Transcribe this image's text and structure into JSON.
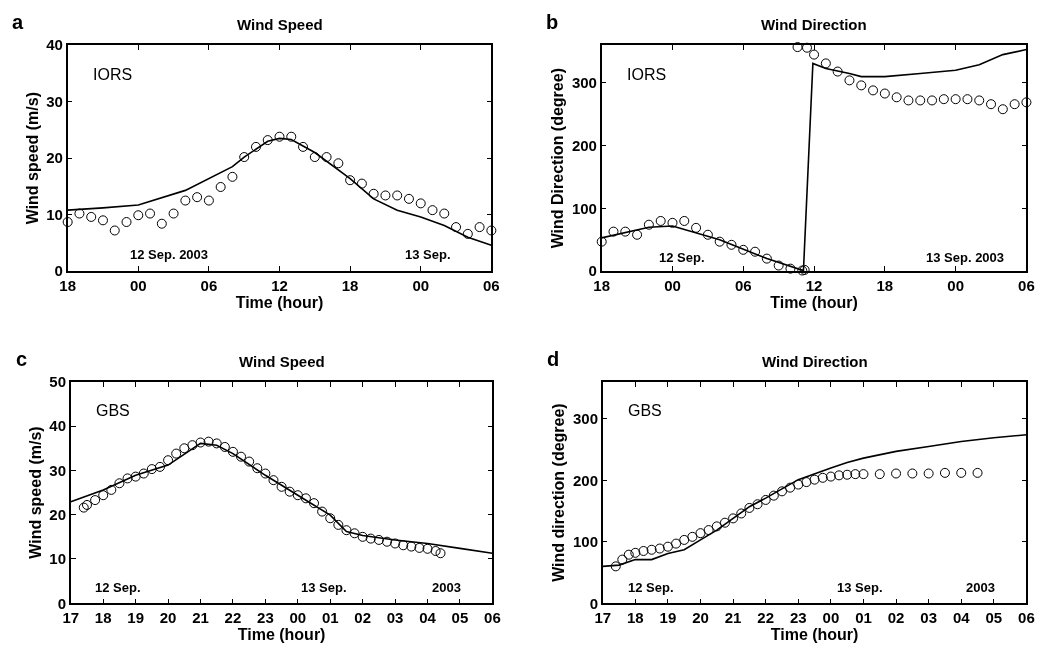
{
  "chart_data": [
    {
      "type": "line",
      "title": "Wind Speed",
      "xlabel": "Time (hour)",
      "ylabel": "Wind speed (m/s)",
      "xlim": [
        "--09-11T18:00",
        "--09-13T06:00"
      ],
      "xticks": [
        {
          "value": "--09-11T18:00",
          "label": "18"
        },
        {
          "value": "--09-12T00:00",
          "label": "00"
        },
        {
          "value": "--09-12T06:00",
          "label": "06"
        },
        {
          "value": "--09-12T12:00",
          "label": "12"
        },
        {
          "value": "--09-12T18:00",
          "label": "18"
        },
        {
          "value": "--09-13T00:00",
          "label": "00"
        },
        {
          "value": "--09-13T06:00",
          "label": "06"
        }
      ],
      "ylim": [
        0,
        40
      ],
      "yticks": [
        0,
        10,
        20,
        30,
        40
      ],
      "annotations": [
        "a",
        "IORS",
        "12 Sep. 2003",
        "13 Sep."
      ],
      "series": [
        {
          "type": "scatter",
          "marker": "circle",
          "color": "#000000",
          "x": [
            "--09-11T18:00",
            "--09-11T19:00",
            "--09-11T20:00",
            "--09-11T21:00",
            "--09-11T22:00",
            "--09-11T23:00",
            "--09-12T00:00",
            "--09-12T01:00",
            "--09-12T02:00",
            "--09-12T03:00",
            "--09-12T04:00",
            "--09-12T05:00",
            "--09-12T06:00",
            "--09-12T07:00",
            "--09-12T08:00",
            "--09-12T09:00",
            "--09-12T10:00",
            "--09-12T11:00",
            "--09-12T12:00",
            "--09-12T13:00",
            "--09-12T14:00",
            "--09-12T15:00",
            "--09-12T16:00",
            "--09-12T17:00",
            "--09-12T18:00",
            "--09-12T19:00",
            "--09-12T20:00",
            "--09-12T21:00",
            "--09-12T22:00",
            "--09-12T23:00",
            "--09-13T00:00",
            "--09-13T01:00",
            "--09-13T02:00",
            "--09-13T03:00",
            "--09-13T04:00",
            "--09-13T05:00",
            "--09-13T06:00"
          ],
          "values": [
            8.7,
            10.2,
            9.6,
            9.0,
            7.2,
            8.7,
            9.9,
            10.2,
            8.4,
            10.2,
            12.5,
            13.1,
            12.5,
            14.9,
            16.7,
            20.2,
            22.0,
            23.2,
            23.8,
            23.8,
            22.0,
            20.2,
            20.2,
            19.1,
            16.1,
            15.5,
            13.7,
            13.4,
            13.4,
            12.8,
            12.0,
            10.8,
            10.2,
            7.8,
            6.6,
            7.8,
            7.2
          ]
        },
        {
          "marker": "none",
          "color": "#000000",
          "x": [
            "--09-11T18:00",
            "--09-11T21:00",
            "--09-12T00:00",
            "--09-12T04:00",
            "--09-12T08:00",
            "--09-12T09:00",
            "--09-12T11:00",
            "--09-12T12:00",
            "--09-12T13:00",
            "--09-12T15:00",
            "--09-12T18:00",
            "--09-12T20:00",
            "--09-12T22:00",
            "--09-13T00:00",
            "--09-13T02:00",
            "--09-13T04:00",
            "--09-13T06:00"
          ],
          "values": [
            10.8,
            11.2,
            11.7,
            14.3,
            18.5,
            20.2,
            23.0,
            23.5,
            23.3,
            21.0,
            16.4,
            12.8,
            10.8,
            9.6,
            8.1,
            6.0,
            4.6
          ]
        }
      ]
    },
    {
      "type": "line",
      "title": "Wind Direction",
      "xlabel": "Time (hour)",
      "ylabel": "Wind Direction (degree)",
      "xlim": [
        "--09-11T18:00",
        "--09-13T06:00"
      ],
      "xticks": [
        {
          "value": "--09-11T18:00",
          "label": "18"
        },
        {
          "value": "--09-12T00:00",
          "label": "00"
        },
        {
          "value": "--09-12T06:00",
          "label": "06"
        },
        {
          "value": "--09-12T12:00",
          "label": "12"
        },
        {
          "value": "--09-12T18:00",
          "label": "18"
        },
        {
          "value": "--09-13T00:00",
          "label": "00"
        },
        {
          "value": "--09-13T06:00",
          "label": "06"
        }
      ],
      "ylim": [
        0,
        360
      ],
      "yticks": [
        0,
        100,
        200,
        300
      ],
      "annotations": [
        "b",
        "IORS",
        "12 Sep.",
        "13 Sep. 2003"
      ],
      "series": [
        {
          "type": "scatter",
          "marker": "circle",
          "color": "#000000",
          "x": [
            "--09-11T18:00",
            "--09-11T19:00",
            "--09-11T20:00",
            "--09-11T21:00",
            "--09-11T22:00",
            "--09-11T23:00",
            "--09-12T00:00",
            "--09-12T01:00",
            "--09-12T02:00",
            "--09-12T03:00",
            "--09-12T04:00",
            "--09-12T05:00",
            "--09-12T06:00",
            "--09-12T07:00",
            "--09-12T08:00",
            "--09-12T09:00",
            "--09-12T10:00",
            "--09-12T11:00",
            "--09-12T11:12",
            "--09-12T10:36",
            "--09-12T11:24",
            "--09-12T12:00",
            "--09-12T13:00",
            "--09-12T14:00",
            "--09-12T15:00",
            "--09-12T16:00",
            "--09-12T17:00",
            "--09-12T18:00",
            "--09-12T19:00",
            "--09-12T20:00",
            "--09-12T21:00",
            "--09-12T22:00",
            "--09-12T23:00",
            "--09-13T00:00",
            "--09-13T01:00",
            "--09-13T02:00",
            "--09-13T03:00",
            "--09-13T04:00",
            "--09-13T05:00",
            "--09-13T06:00"
          ],
          "values": [
            47,
            63,
            63,
            58,
            74,
            80,
            77,
            80,
            69,
            58,
            47,
            42,
            34,
            31,
            20,
            9,
            4,
            1,
            2,
            357,
            356,
            345,
            331,
            318,
            304,
            296,
            288,
            283,
            277,
            272,
            272,
            272,
            274,
            274,
            274,
            272,
            266,
            258,
            266,
            269
          ]
        },
        {
          "marker": "none",
          "color": "#000000",
          "x": [
            "--09-11T18:00",
            "--09-11T22:00",
            "--09-12T00:00",
            "--09-12T04:00",
            "--09-12T08:00",
            "--09-12T11:06",
            "--09-12T11:54",
            "--09-12T13:00",
            "--09-12T15:00",
            "--09-12T16:00",
            "--09-12T18:00",
            "--09-12T21:00",
            "--09-13T00:00",
            "--09-13T02:00",
            "--09-13T04:00",
            "--09-13T06:00"
          ],
          "values": [
            53,
            70,
            72,
            50,
            20,
            1,
            331,
            323,
            315,
            310,
            310,
            315,
            320,
            329,
            345,
            353
          ]
        }
      ]
    },
    {
      "type": "line",
      "title": "Wind Speed",
      "xlabel": "Time (hour)",
      "ylabel": "Wind speed (m/s)",
      "xlim": [
        "--09-12T17:00",
        "--09-13T06:00"
      ],
      "xticks": [
        {
          "value": "--09-12T17:00",
          "label": "17"
        },
        {
          "value": "--09-12T18:00",
          "label": "18"
        },
        {
          "value": "--09-12T19:00",
          "label": "19"
        },
        {
          "value": "--09-12T20:00",
          "label": "20"
        },
        {
          "value": "--09-12T21:00",
          "label": "21"
        },
        {
          "value": "--09-12T22:00",
          "label": "22"
        },
        {
          "value": "--09-12T23:00",
          "label": "23"
        },
        {
          "value": "--09-13T00:00",
          "label": "00"
        },
        {
          "value": "--09-13T01:00",
          "label": "01"
        },
        {
          "value": "--09-13T02:00",
          "label": "02"
        },
        {
          "value": "--09-13T03:00",
          "label": "03"
        },
        {
          "value": "--09-13T04:00",
          "label": "04"
        },
        {
          "value": "--09-13T05:00",
          "label": "05"
        },
        {
          "value": "--09-13T06:00",
          "label": "06"
        }
      ],
      "ylim": [
        0,
        50
      ],
      "yticks": [
        0,
        10,
        20,
        30,
        40,
        50
      ],
      "annotations": [
        "c",
        "GBS",
        "12 Sep.",
        "13 Sep.",
        "2003"
      ],
      "series": [
        {
          "type": "scatter",
          "marker": "circle",
          "color": "#000000",
          "x": [
            "--09-12T17:24",
            "--09-12T17:30",
            "--09-12T17:45",
            "--09-12T18:00",
            "--09-12T18:15",
            "--09-12T18:30",
            "--09-12T18:45",
            "--09-12T19:00",
            "--09-12T19:15",
            "--09-12T19:30",
            "--09-12T19:45",
            "--09-12T20:00",
            "--09-12T20:15",
            "--09-12T20:30",
            "--09-12T20:45",
            "--09-12T21:00",
            "--09-12T21:15",
            "--09-12T21:30",
            "--09-12T21:45",
            "--09-12T22:00",
            "--09-12T22:15",
            "--09-12T22:30",
            "--09-12T22:45",
            "--09-12T23:00",
            "--09-12T23:15",
            "--09-12T23:30",
            "--09-12T23:45",
            "--09-13T00:00",
            "--09-13T00:15",
            "--09-13T00:30",
            "--09-13T00:45",
            "--09-13T01:00",
            "--09-13T01:15",
            "--09-13T01:30",
            "--09-13T01:45",
            "--09-13T02:00",
            "--09-13T02:15",
            "--09-13T02:30",
            "--09-13T02:45",
            "--09-13T03:00",
            "--09-13T03:15",
            "--09-13T03:30",
            "--09-13T03:45",
            "--09-13T04:00",
            "--09-13T04:15",
            "--09-13T04:24"
          ],
          "values": [
            21.6,
            22.2,
            23.3,
            24.4,
            25.6,
            27.1,
            28.2,
            28.6,
            29.3,
            30.3,
            30.8,
            32.3,
            33.8,
            35.0,
            35.7,
            36.3,
            36.5,
            36.1,
            35.3,
            34.2,
            33.1,
            32.0,
            30.5,
            29.3,
            27.8,
            26.3,
            25.2,
            24.4,
            23.7,
            22.6,
            20.7,
            19.2,
            17.7,
            16.5,
            15.8,
            15.0,
            14.6,
            14.3,
            13.9,
            13.5,
            13.1,
            12.8,
            12.5,
            12.3,
            11.8,
            11.3
          ]
        },
        {
          "marker": "none",
          "color": "#000000",
          "x": [
            "--09-12T17:00",
            "--09-12T18:00",
            "--09-12T19:00",
            "--09-12T20:00",
            "--09-12T21:00",
            "--09-12T21:30",
            "--09-12T22:00",
            "--09-12T23:00",
            "--09-13T00:00",
            "--09-13T01:00",
            "--09-13T01:30",
            "--09-13T02:00",
            "--09-13T03:00",
            "--09-13T04:00",
            "--09-13T05:00",
            "--09-13T06:00"
          ],
          "values": [
            22.9,
            25.6,
            28.9,
            31.2,
            36.1,
            35.7,
            33.8,
            28.9,
            24.4,
            19.9,
            16.2,
            15.3,
            14.3,
            13.5,
            12.4,
            11.3
          ]
        }
      ]
    },
    {
      "type": "line",
      "title": "Wind Direction",
      "xlabel": "Time (hour)",
      "ylabel": "Wind direction (degree)",
      "xlim": [
        "--09-12T17:00",
        "--09-13T06:00"
      ],
      "xticks": [
        {
          "value": "--09-12T17:00",
          "label": "17"
        },
        {
          "value": "--09-12T18:00",
          "label": "18"
        },
        {
          "value": "--09-12T19:00",
          "label": "19"
        },
        {
          "value": "--09-12T20:00",
          "label": "20"
        },
        {
          "value": "--09-12T21:00",
          "label": "21"
        },
        {
          "value": "--09-12T22:00",
          "label": "22"
        },
        {
          "value": "--09-12T23:00",
          "label": "23"
        },
        {
          "value": "--09-13T00:00",
          "label": "00"
        },
        {
          "value": "--09-13T01:00",
          "label": "01"
        },
        {
          "value": "--09-13T02:00",
          "label": "02"
        },
        {
          "value": "--09-13T03:00",
          "label": "03"
        },
        {
          "value": "--09-13T04:00",
          "label": "04"
        },
        {
          "value": "--09-13T05:00",
          "label": "05"
        },
        {
          "value": "--09-13T06:00",
          "label": "06"
        }
      ],
      "ylim": [
        0,
        360
      ],
      "yticks": [
        0,
        100,
        200,
        300
      ],
      "annotations": [
        "d",
        "GBS",
        "12 Sep.",
        "13 Sep.",
        "2003"
      ],
      "series": [
        {
          "type": "scatter",
          "marker": "circle",
          "color": "#000000",
          "x": [
            "--09-12T17:24",
            "--09-12T17:36",
            "--09-12T17:48",
            "--09-12T18:00",
            "--09-12T18:15",
            "--09-12T18:30",
            "--09-12T18:45",
            "--09-12T19:00",
            "--09-12T19:15",
            "--09-12T19:30",
            "--09-12T19:45",
            "--09-12T20:00",
            "--09-12T20:15",
            "--09-12T20:30",
            "--09-12T20:45",
            "--09-12T21:00",
            "--09-12T21:15",
            "--09-12T21:30",
            "--09-12T21:45",
            "--09-12T22:00",
            "--09-12T22:15",
            "--09-12T22:30",
            "--09-12T22:45",
            "--09-12T23:00",
            "--09-12T23:15",
            "--09-12T23:30",
            "--09-12T23:45",
            "--09-13T00:00",
            "--09-13T00:15",
            "--09-13T00:30",
            "--09-13T00:45",
            "--09-13T01:00",
            "--09-13T01:30",
            "--09-13T02:00",
            "--09-13T02:30",
            "--09-13T03:00",
            "--09-13T03:30",
            "--09-13T04:00",
            "--09-13T04:30"
          ],
          "values": [
            60,
            71,
            79,
            82,
            85,
            87,
            89,
            92,
            97,
            103,
            108,
            114,
            119,
            125,
            131,
            138,
            146,
            155,
            161,
            168,
            175,
            182,
            188,
            193,
            197,
            201,
            204,
            206,
            208,
            209,
            210,
            210,
            210,
            211,
            211,
            211,
            212,
            212,
            212
          ]
        },
        {
          "marker": "none",
          "color": "#000000",
          "x": [
            "--09-12T17:00",
            "--09-12T17:30",
            "--09-12T18:00",
            "--09-12T18:30",
            "--09-12T19:00",
            "--09-12T19:30",
            "--09-12T20:00",
            "--09-12T20:30",
            "--09-12T21:00",
            "--09-12T21:30",
            "--09-12T22:00",
            "--09-12T23:00",
            "--09-13T00:00",
            "--09-13T00:30",
            "--09-13T01:00",
            "--09-13T02:00",
            "--09-13T03:00",
            "--09-13T04:00",
            "--09-13T05:00",
            "--09-13T06:00"
          ],
          "values": [
            60,
            62,
            71,
            71,
            81,
            87,
            103,
            119,
            138,
            157,
            171,
            201,
            220,
            229,
            236,
            247,
            255,
            263,
            269,
            274
          ]
        }
      ]
    }
  ]
}
